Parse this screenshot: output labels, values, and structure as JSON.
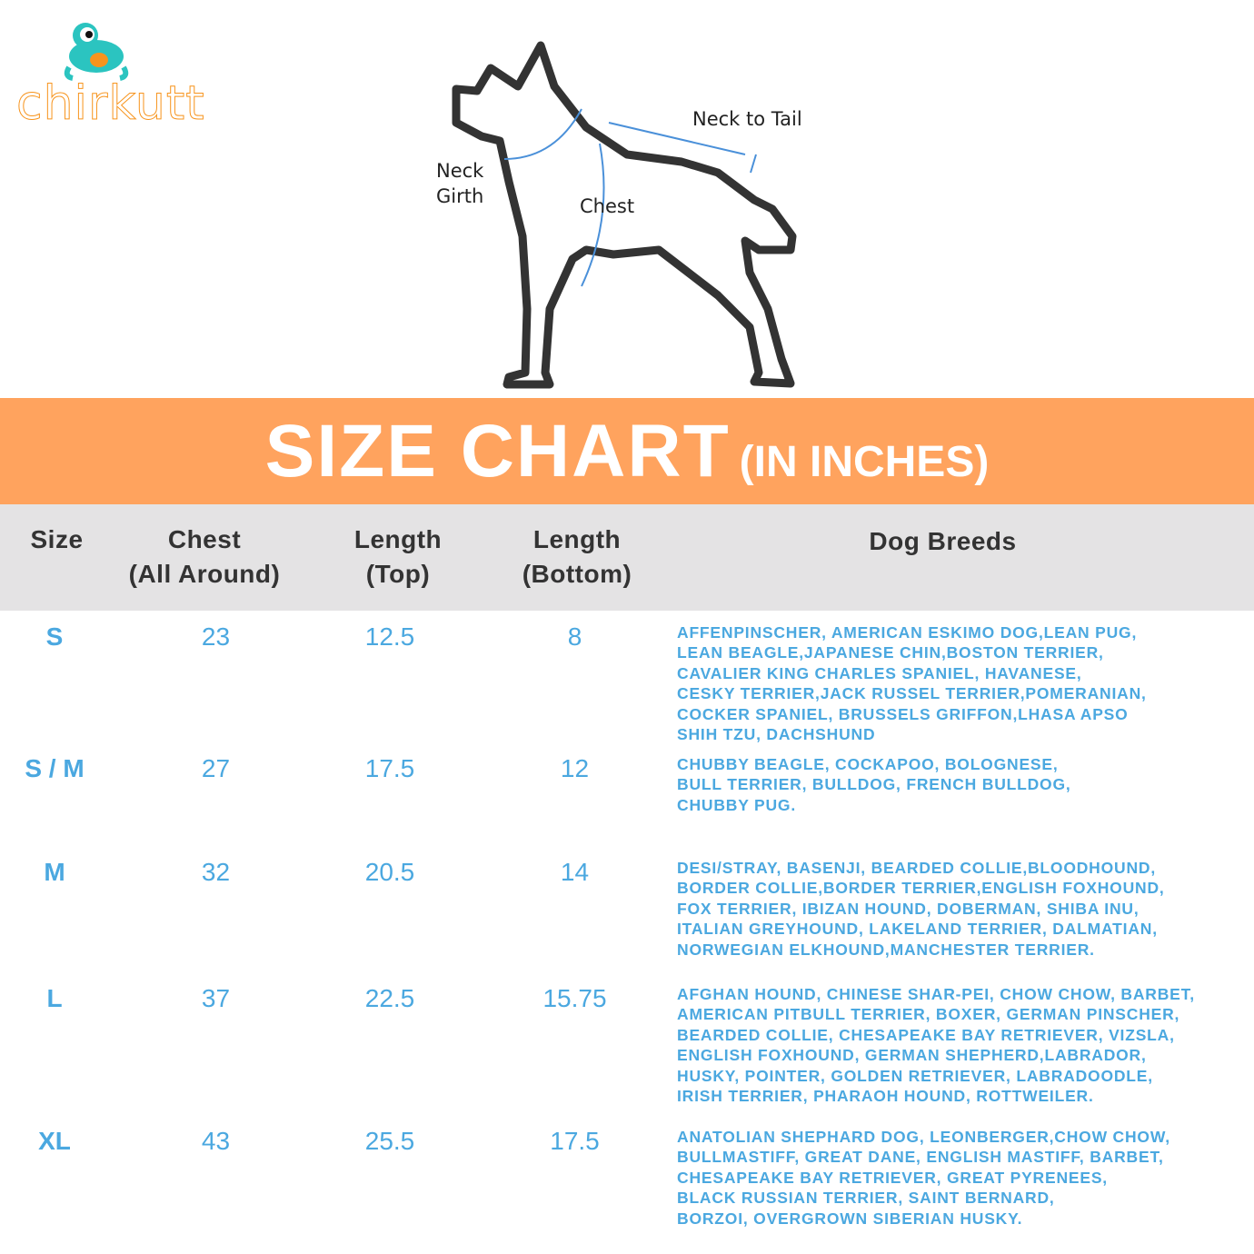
{
  "logo": {
    "text": "chirkutt"
  },
  "diagram": {
    "labels": {
      "neck_to_tail": "Neck to Tail",
      "neck_girth_line1": "Neck",
      "neck_girth_line2": "Girth",
      "chest": "Chest"
    },
    "line_color": "#333333",
    "arrow_color": "#4A90D9"
  },
  "banner": {
    "title": "SIZE CHART",
    "subtitle": "(IN INCHES)",
    "color": "#FFA35E"
  },
  "table": {
    "headers": {
      "size": "Size",
      "chest_1": "Chest",
      "chest_2": "(All Around)",
      "len_top_1": "Length",
      "len_top_2": "(Top)",
      "len_bottom_1": "Length",
      "len_bottom_2": "(Bottom)",
      "breeds": "Dog Breeds"
    },
    "header_bg": "#E4E3E4",
    "value_color": "#4BA8E0",
    "rows": [
      {
        "size": "S",
        "chest": "23",
        "length_top": "12.5",
        "length_bottom": "8",
        "breeds": [
          "AFFENPINSCHER, AMERICAN ESKIMO DOG,LEAN PUG,",
          "LEAN BEAGLE,JAPANESE CHIN,BOSTON TERRIER,",
          "CAVALIER KING CHARLES SPANIEL, HAVANESE,",
          "CESKY TERRIER,JACK RUSSEL TERRIER,POMERANIAN,",
          "COCKER SPANIEL, BRUSSELS GRIFFON,LHASA APSO",
          "SHIH TZU, DACHSHUND"
        ]
      },
      {
        "size": "S / M",
        "chest": "27",
        "length_top": "17.5",
        "length_bottom": "12",
        "breeds": [
          "CHUBBY BEAGLE, COCKAPOO, BOLOGNESE,",
          "BULL TERRIER, BULLDOG, FRENCH BULLDOG,",
          "CHUBBY PUG."
        ]
      },
      {
        "size": "M",
        "chest": "32",
        "length_top": "20.5",
        "length_bottom": "14",
        "breeds": [
          "DESI/STRAY, BASENJI, BEARDED COLLIE,BLOODHOUND,",
          "BORDER COLLIE,BORDER TERRIER,ENGLISH FOXHOUND,",
          "FOX TERRIER, IBIZAN HOUND, DOBERMAN, SHIBA INU,",
          "ITALIAN GREYHOUND, LAKELAND TERRIER, DALMATIAN,",
          "NORWEGIAN ELKHOUND,MANCHESTER TERRIER."
        ]
      },
      {
        "size": "L",
        "chest": "37",
        "length_top": "22.5",
        "length_bottom": "15.75",
        "breeds": [
          "AFGHAN HOUND, CHINESE SHAR-PEI, CHOW CHOW, BARBET,",
          "AMERICAN PITBULL TERRIER, BOXER, GERMAN PINSCHER,",
          "BEARDED COLLIE, CHESAPEAKE BAY RETRIEVER, VIZSLA,",
          "ENGLISH FOXHOUND, GERMAN SHEPHERD,LABRADOR,",
          "HUSKY, POINTER, GOLDEN RETRIEVER, LABRADOODLE,",
          "IRISH TERRIER, PHARAOH HOUND, ROTTWEILER."
        ]
      },
      {
        "size": "XL",
        "chest": "43",
        "length_top": "25.5",
        "length_bottom": "17.5",
        "breeds": [
          "ANATOLIAN SHEPHARD DOG, LEONBERGER,CHOW CHOW,",
          "BULLMASTIFF, GREAT DANE, ENGLISH MASTIFF, BARBET,",
          "CHESAPEAKE BAY RETRIEVER, GREAT PYRENEES,",
          "BLACK RUSSIAN TERRIER, SAINT BERNARD,",
          "BORZOI, OVERGROWN SIBERIAN HUSKY."
        ]
      }
    ]
  }
}
